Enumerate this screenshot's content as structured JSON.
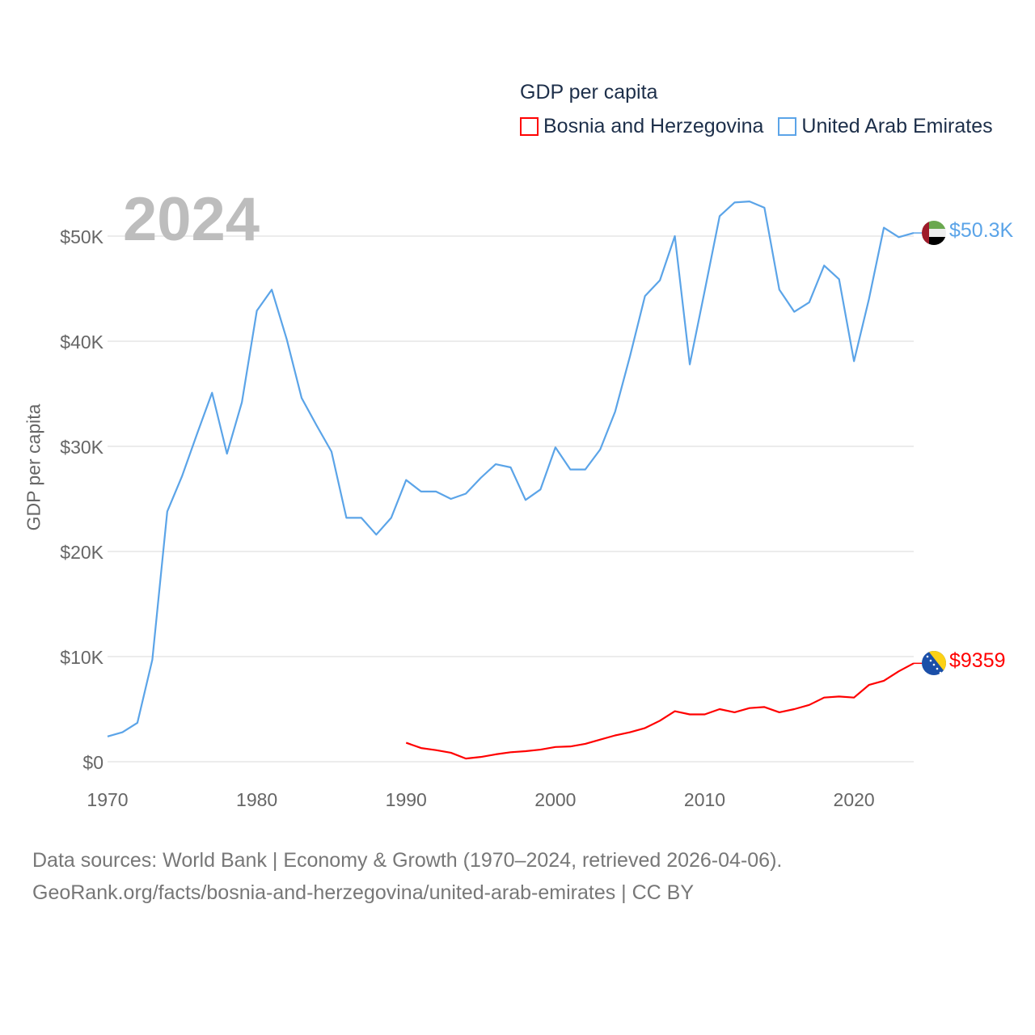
{
  "chart_data": {
    "type": "line",
    "title": "GDP per capita",
    "ylabel": "GDP per capita",
    "xlabel": "",
    "current_year": "2024",
    "xlim": [
      1970,
      2024
    ],
    "ylim": [
      0,
      55000
    ],
    "x_ticks": [
      1970,
      1980,
      1990,
      2000,
      2010,
      2020
    ],
    "x_tick_labels": [
      "1970",
      "1980",
      "1990",
      "2000",
      "2010",
      "2020"
    ],
    "y_ticks": [
      0,
      10000,
      20000,
      30000,
      40000,
      50000
    ],
    "y_tick_labels": [
      "$0",
      "$10K",
      "$20K",
      "$30K",
      "$40K",
      "$50K"
    ],
    "grid": true,
    "legend_placement": "top-right",
    "series": [
      {
        "name": "Bosnia and Herzegovina",
        "color": "#ff0000",
        "end_label": "$9359",
        "flag": "bosnia-flag",
        "x_start": 1990,
        "values": [
          1800,
          1300,
          1100,
          850,
          300,
          450,
          700,
          900,
          1000,
          1150,
          1400,
          1450,
          1700,
          2100,
          2500,
          2800,
          3200,
          3900,
          4800,
          4500,
          4500,
          5000,
          4700,
          5100,
          5200,
          4700,
          5000,
          5400,
          6100,
          6200,
          6100,
          7300,
          7700,
          8600,
          9359
        ]
      },
      {
        "name": "United Arab Emirates",
        "color": "#5ba4e8",
        "end_label": "$50.3K",
        "flag": "uae-flag",
        "x_start": 1970,
        "values": [
          2400,
          2800,
          3700,
          9700,
          23800,
          27200,
          31200,
          35100,
          29300,
          34200,
          42900,
          44900,
          40200,
          34600,
          32000,
          29500,
          23200,
          23200,
          21600,
          23200,
          26800,
          25700,
          25700,
          25000,
          25500,
          27000,
          28300,
          28000,
          24900,
          25900,
          29900,
          27800,
          27800,
          29700,
          33300,
          38600,
          44300,
          45800,
          50000,
          37800,
          44800,
          51900,
          53200,
          53300,
          52700,
          44900,
          42800,
          43700,
          47200,
          45900,
          38100,
          44000,
          50800,
          49900,
          50300
        ]
      }
    ]
  },
  "footer": {
    "line1": "Data sources: World Bank | Economy & Growth (1970–2024, retrieved 2026-04-06).",
    "line2": "GeoRank.org/facts/bosnia-and-herzegovina/united-arab-emirates | CC BY"
  }
}
